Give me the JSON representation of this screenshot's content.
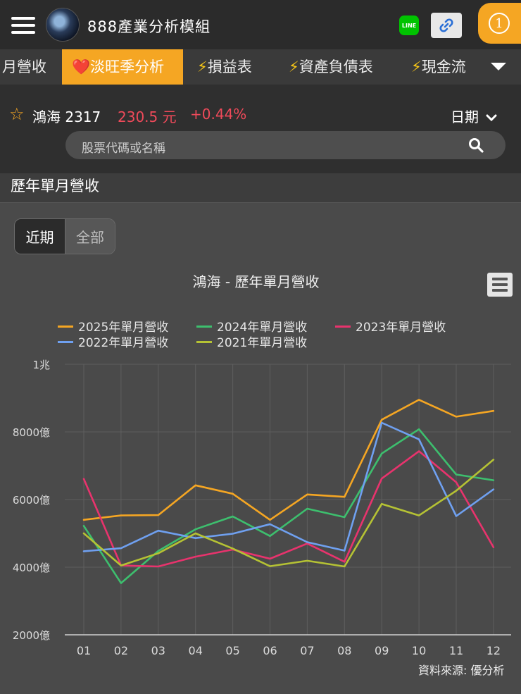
{
  "app": {
    "title": "888產業分析模組"
  },
  "header": {
    "line_label": "LINE",
    "notify_count": "1"
  },
  "tabs": [
    {
      "label": "月營收",
      "icon": ""
    },
    {
      "label": "淡旺季分析",
      "icon": "heart-icon"
    },
    {
      "label": "損益表",
      "icon": "bolt-icon"
    },
    {
      "label": "資產負債表",
      "icon": "bolt-icon"
    },
    {
      "label": "現金流",
      "icon": "bolt-icon"
    }
  ],
  "stock": {
    "name": "鴻海 2317",
    "price": "230.5 元",
    "change": "+0.44%"
  },
  "date_selector": {
    "label": "日期"
  },
  "search": {
    "placeholder": "股票代碼或名稱"
  },
  "section": {
    "title": "歷年單月營收"
  },
  "period_toggle": {
    "recent": "近期",
    "all": "全部"
  },
  "source": "資料來源: 優分析",
  "colors": {
    "2025": "#f5a623",
    "2024": "#3dbf6e",
    "2023": "#e8336d",
    "2022": "#6fa0f0",
    "2021": "#b5c234"
  },
  "chart_data": {
    "type": "line",
    "title": "鴻海 - 歷年單月營收",
    "xlabel": "",
    "ylabel": "",
    "x": [
      "01",
      "02",
      "03",
      "04",
      "05",
      "06",
      "07",
      "08",
      "09",
      "10",
      "11",
      "12"
    ],
    "y_ticks": [
      {
        "value": 2000,
        "label": "2000億"
      },
      {
        "value": 4000,
        "label": "4000億"
      },
      {
        "value": 6000,
        "label": "6000億"
      },
      {
        "value": 8000,
        "label": "8000億"
      },
      {
        "value": 10000,
        "label": "1兆"
      }
    ],
    "ylim": [
      2000,
      10000
    ],
    "unit": "億",
    "grid": true,
    "legend": "top",
    "series": [
      {
        "name": "2025年單月營收",
        "key": "2025",
        "values": [
          5400,
          5530,
          5540,
          6420,
          6170,
          5400,
          6150,
          6080,
          8360,
          8950,
          8450,
          8620
        ]
      },
      {
        "name": "2024年單月營收",
        "key": "2024",
        "values": [
          5220,
          3530,
          4480,
          5120,
          5500,
          4920,
          5730,
          5480,
          7360,
          8080,
          6740,
          6570
        ]
      },
      {
        "name": "2023年單月營收",
        "key": "2023",
        "values": [
          6610,
          4050,
          4020,
          4310,
          4520,
          4250,
          4700,
          4160,
          6620,
          7430,
          6510,
          4590
        ]
      },
      {
        "name": "2022年單月營收",
        "key": "2022",
        "values": [
          4470,
          4560,
          5080,
          4860,
          4990,
          5270,
          4740,
          4490,
          8270,
          7780,
          5510,
          6300
        ]
      },
      {
        "name": "2021年單月營收",
        "key": "2021",
        "values": [
          5000,
          4050,
          4410,
          5000,
          4550,
          4030,
          4190,
          4020,
          5870,
          5530,
          6260,
          7180
        ]
      }
    ]
  }
}
